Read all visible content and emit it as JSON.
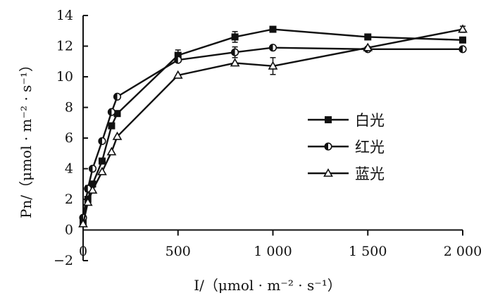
{
  "chart_data": {
    "type": "line",
    "xlabel": "I/（μmol · m⁻² · s⁻¹）",
    "ylabel": "Pn/（μmol · m⁻² · s⁻¹）",
    "xlim": [
      0,
      2000
    ],
    "ylim": [
      -2,
      14
    ],
    "xticks": [
      0,
      500,
      1000,
      1500,
      2000
    ],
    "xtick_labels": [
      "0",
      "500",
      "1 000",
      "1 500",
      "2 000"
    ],
    "yticks": [
      -2,
      0,
      2,
      4,
      6,
      8,
      10,
      12,
      14
    ],
    "ytick_labels": [
      "−2",
      "0",
      "2",
      "4",
      "6",
      "8",
      "10",
      "12",
      "14"
    ],
    "grid": false,
    "legend_position": "right",
    "series": [
      {
        "name": "白光",
        "marker": "square-filled",
        "x": [
          0,
          25,
          50,
          100,
          150,
          180,
          500,
          800,
          1000,
          1500,
          2000
        ],
        "y": [
          0.5,
          2.0,
          3.0,
          4.5,
          6.8,
          7.6,
          11.4,
          12.6,
          13.1,
          12.6,
          12.4
        ],
        "err": [
          0,
          0,
          0,
          0,
          0,
          0,
          0.35,
          0.35,
          0,
          0,
          0
        ]
      },
      {
        "name": "红光",
        "marker": "circle-half",
        "x": [
          0,
          25,
          50,
          100,
          150,
          180,
          500,
          800,
          1000,
          1500,
          2000
        ],
        "y": [
          0.8,
          2.7,
          4.0,
          5.8,
          7.7,
          8.7,
          11.1,
          11.6,
          11.9,
          11.8,
          11.8
        ],
        "err": [
          0,
          0.2,
          0,
          0,
          0,
          0,
          0,
          0.35,
          0,
          0,
          0
        ]
      },
      {
        "name": "蓝光",
        "marker": "triangle-open",
        "x": [
          0,
          25,
          50,
          100,
          150,
          180,
          500,
          800,
          1000,
          1500,
          2000
        ],
        "y": [
          0.4,
          1.8,
          2.6,
          3.8,
          5.1,
          6.1,
          10.1,
          10.9,
          10.7,
          11.9,
          13.1
        ],
        "err": [
          0,
          0,
          0,
          0,
          0,
          0,
          0,
          0,
          0.55,
          0,
          0.2
        ]
      }
    ]
  }
}
